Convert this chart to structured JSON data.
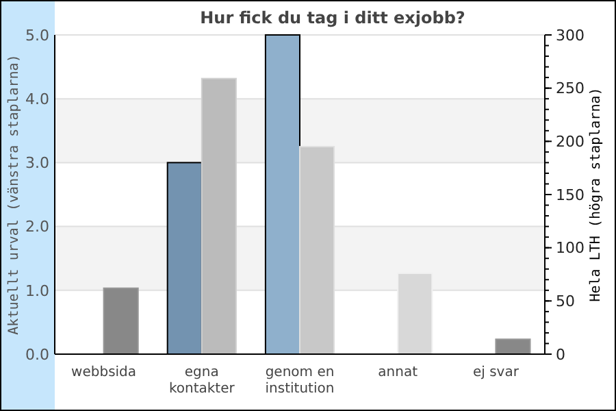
{
  "chart_data": {
    "type": "bar",
    "title": "Hur fick du tag i ditt exjobb?",
    "ylabel": "Aktuellt urval (vänstra staplarna)",
    "y2label": "Hela LTH (högra staplarna)",
    "categories": [
      "webbsida",
      "egna kontakter",
      "genom en institution",
      "annat",
      "ej svar"
    ],
    "series": [
      {
        "colors": [
          "#7393b0",
          "#7393b0",
          "#8fb0cc",
          "#7393b0",
          "#7393b0"
        ],
        "values": [
          0,
          3,
          5,
          0,
          0
        ]
      },
      {
        "colors": [
          "#888888",
          "#bbbbbb",
          "#c8c8c8",
          "#d8d8d8",
          "#888888"
        ],
        "values": [
          62,
          259,
          195,
          76,
          14
        ],
        "axis": "y2"
      }
    ],
    "ylim": [
      0,
      5
    ],
    "yticks": [
      {
        "value": 0,
        "label": "0.0"
      },
      {
        "value": 1,
        "label": "1.0"
      },
      {
        "value": 2,
        "label": "2.0"
      },
      {
        "value": 3,
        "label": "3.0"
      },
      {
        "value": 4,
        "label": "4.0"
      },
      {
        "value": 5,
        "label": "5.0"
      }
    ],
    "y2lim": [
      0,
      300
    ],
    "y2ticks": [
      0,
      50,
      100,
      150,
      200,
      250,
      300
    ],
    "grid": "y"
  }
}
